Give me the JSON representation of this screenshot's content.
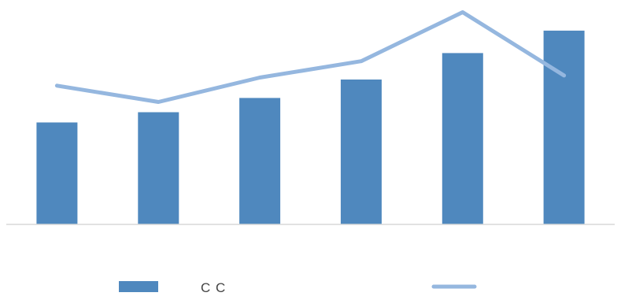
{
  "chart_data": {
    "type": "bar",
    "categories": [
      "",
      "",
      "",
      "",
      "",
      ""
    ],
    "series": [
      {
        "type": "bar",
        "name": "C C",
        "values": [
          2.5,
          2.75,
          3.1,
          3.55,
          4.2,
          4.75
        ],
        "color": "#4F88BE"
      },
      {
        "type": "line",
        "values": [
          3.4,
          3.0,
          3.6,
          4.0,
          5.2,
          3.65
        ],
        "color": "#95B7DF"
      }
    ],
    "ylim": [
      0,
      5.5
    ],
    "grid": false,
    "axes_visible": false,
    "legend_position": "bottom"
  }
}
